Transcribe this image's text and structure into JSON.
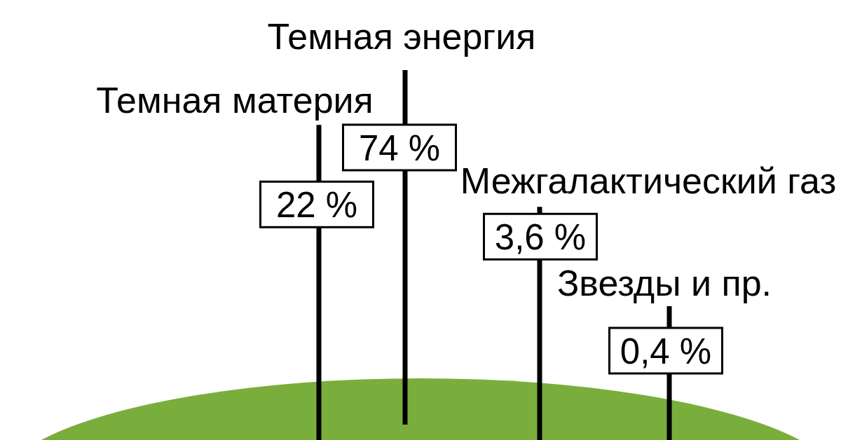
{
  "chart_data": {
    "type": "other",
    "categories": [
      "Темная материя",
      "Темная энергия",
      "Межгалактический газ",
      "Звезды и пр."
    ],
    "values": [
      22,
      74,
      3.6,
      0.4
    ],
    "value_labels": [
      "22 %",
      "74 %",
      "3,6 %",
      "0,4 %"
    ]
  }
}
